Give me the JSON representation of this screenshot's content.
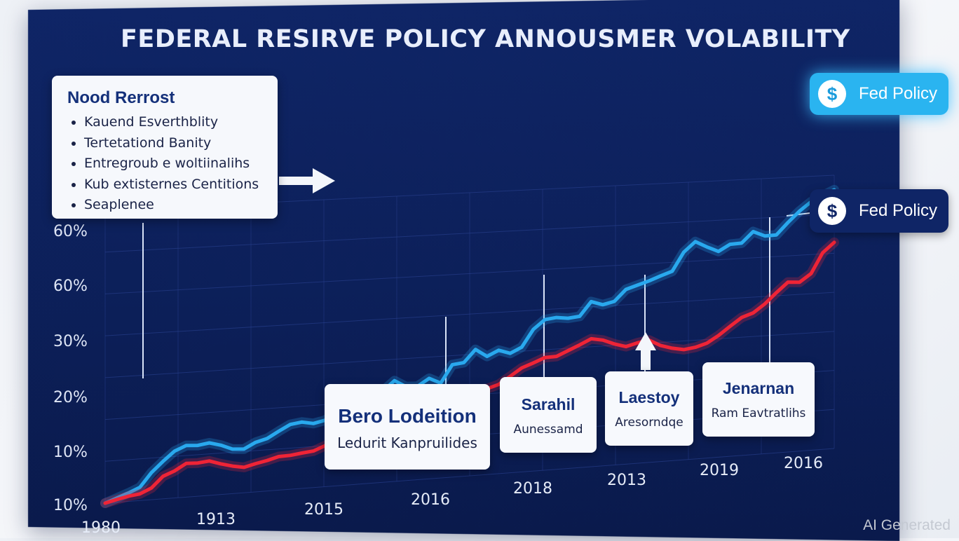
{
  "title": "FEDERAL RESIRVE POLICY ANNOUSMER VOLABILITY",
  "notes": {
    "heading": "Nood Rerrost",
    "items": [
      "Kauend Esverthblity",
      "Tertetationd Banity",
      "Entregroub e woltiinalihs",
      "Kub extisternes Centitions",
      "Seaplenee"
    ]
  },
  "badges": [
    {
      "label": "Fed Policy",
      "symbol": "$",
      "style": "cyan"
    },
    {
      "label": "Fed Policy",
      "symbol": "$",
      "style": "navy"
    }
  ],
  "annotations": [
    {
      "title": "Bero Lodeition",
      "subtitle": "Ledurit Kanpruilides"
    },
    {
      "title": "Sarahil",
      "subtitle": "Aunessamd"
    },
    {
      "title": "Laestoy",
      "subtitle": "Aresorndqe"
    },
    {
      "title": "Jenarnan",
      "subtitle": "Ram Eavtratlihs"
    }
  ],
  "watermark": "AI Generated",
  "chart_data": {
    "type": "line",
    "title": "FEDERAL RESIRVE POLICY ANNOUSMER VOLABILITY",
    "xlabel": "",
    "ylabel": "",
    "y_tick_labels": [
      "10%",
      "10%",
      "20%",
      "30%",
      "60%",
      "60%"
    ],
    "x_tick_labels": [
      "1980",
      "1913",
      "2015",
      "2016",
      "2018",
      "2013",
      "2019",
      "2016"
    ],
    "grid": true,
    "series": [
      {
        "color": "#29a9ee",
        "values": [
          0.0,
          0.2,
          0.4,
          0.63,
          1.3,
          1.8,
          2.25,
          2.48,
          2.45,
          2.53,
          2.38,
          2.15,
          2.12,
          2.4,
          2.55,
          2.86,
          3.15,
          3.23,
          3.12,
          3.24,
          3.58,
          3.93,
          4.2,
          4.03,
          4.48,
          4.95,
          4.62,
          4.6,
          4.95,
          4.68,
          5.55,
          5.62,
          6.23,
          5.85,
          6.12,
          5.93,
          6.2,
          7.05,
          7.5,
          7.57,
          7.5,
          7.56,
          8.26,
          8.07,
          8.2,
          8.77,
          8.95,
          9.13,
          9.35,
          9.55,
          10.48,
          10.98,
          10.68,
          10.42,
          10.75,
          10.78,
          11.33,
          11.08,
          11.1,
          11.7,
          12.25,
          12.7,
          12.98,
          13.25
        ]
      },
      {
        "color": "#ef2436",
        "values": [
          0.0,
          0.13,
          0.25,
          0.32,
          0.56,
          1.08,
          1.3,
          1.62,
          1.6,
          1.66,
          1.48,
          1.33,
          1.23,
          1.37,
          1.48,
          1.63,
          1.65,
          1.72,
          1.78,
          2.0,
          2.25,
          2.58,
          2.94,
          3.27,
          3.56,
          3.88,
          4.06,
          4.15,
          4.21,
          4.25,
          4.23,
          4.17,
          4.26,
          4.25,
          4.42,
          4.79,
          5.17,
          5.38,
          5.61,
          5.63,
          5.88,
          6.13,
          6.4,
          6.3,
          6.07,
          5.9,
          6.05,
          6.15,
          5.84,
          5.67,
          5.56,
          5.64,
          5.81,
          6.16,
          6.59,
          7.0,
          7.2,
          7.62,
          8.16,
          8.66,
          8.62,
          9.03,
          10.06,
          10.56
        ]
      }
    ]
  }
}
